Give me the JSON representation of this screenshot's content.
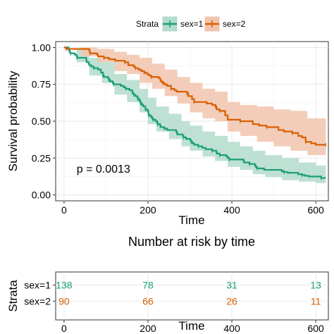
{
  "chart_data": [
    {
      "type": "line",
      "subtype": "kaplan-meier",
      "xlabel": "Time",
      "ylabel": "Survival probability",
      "xlim": [
        -20,
        630
      ],
      "ylim": [
        -0.04,
        1.04
      ],
      "xticks": [
        0,
        200,
        400,
        600
      ],
      "yticks": [
        0.0,
        0.25,
        0.5,
        0.75,
        1.0
      ],
      "xtick_labels": [
        "0",
        "200",
        "400",
        "600"
      ],
      "ytick_labels": [
        "0.00",
        "0.25",
        "0.50",
        "0.75",
        "1.00"
      ],
      "grid": true,
      "legend": {
        "title": "Strata",
        "placement": "top",
        "entries": [
          "sex=1",
          "sex=2"
        ]
      },
      "annotation": "p = 0.0013",
      "annotation_pos": {
        "x": 30,
        "y": 0.18
      },
      "series": [
        {
          "name": "sex=1",
          "color": "#1b9e77",
          "fill": "#b3dccb",
          "step": [
            [
              0,
              1.0
            ],
            [
              11,
              0.99
            ],
            [
              12,
              0.98
            ],
            [
              13,
              0.97
            ],
            [
              15,
              0.96
            ],
            [
              26,
              0.95
            ],
            [
              30,
              0.94
            ],
            [
              31,
              0.93
            ],
            [
              53,
              0.91
            ],
            [
              54,
              0.9
            ],
            [
              59,
              0.89
            ],
            [
              60,
              0.88
            ],
            [
              65,
              0.87
            ],
            [
              71,
              0.86
            ],
            [
              81,
              0.85
            ],
            [
              88,
              0.83
            ],
            [
              93,
              0.81
            ],
            [
              95,
              0.8
            ],
            [
              105,
              0.79
            ],
            [
              107,
              0.78
            ],
            [
              110,
              0.77
            ],
            [
              116,
              0.76
            ],
            [
              118,
              0.75
            ],
            [
              135,
              0.74
            ],
            [
              142,
              0.73
            ],
            [
              147,
              0.72
            ],
            [
              156,
              0.71
            ],
            [
              163,
              0.69
            ],
            [
              166,
              0.68
            ],
            [
              170,
              0.67
            ],
            [
              175,
              0.66
            ],
            [
              176,
              0.65
            ],
            [
              180,
              0.64
            ],
            [
              181,
              0.63
            ],
            [
              183,
              0.62
            ],
            [
              186,
              0.61
            ],
            [
              189,
              0.6
            ],
            [
              194,
              0.58
            ],
            [
              199,
              0.57
            ],
            [
              201,
              0.55
            ],
            [
              202,
              0.54
            ],
            [
              207,
              0.53
            ],
            [
              210,
              0.52
            ],
            [
              212,
              0.51
            ],
            [
              218,
              0.5
            ],
            [
              222,
              0.49
            ],
            [
              223,
              0.48
            ],
            [
              229,
              0.47
            ],
            [
              230,
              0.46
            ],
            [
              239,
              0.45
            ],
            [
              246,
              0.44
            ],
            [
              267,
              0.43
            ],
            [
              269,
              0.42
            ],
            [
              270,
              0.41
            ],
            [
              283,
              0.4
            ],
            [
              285,
              0.39
            ],
            [
              291,
              0.38
            ],
            [
              301,
              0.37
            ],
            [
              303,
              0.36
            ],
            [
              306,
              0.35
            ],
            [
              310,
              0.34
            ],
            [
              320,
              0.33
            ],
            [
              329,
              0.32
            ],
            [
              337,
              0.31
            ],
            [
              353,
              0.3
            ],
            [
              363,
              0.29
            ],
            [
              364,
              0.28
            ],
            [
              371,
              0.27
            ],
            [
              387,
              0.26
            ],
            [
              390,
              0.25
            ],
            [
              394,
              0.24
            ],
            [
              428,
              0.23
            ],
            [
              429,
              0.22
            ],
            [
              442,
              0.21
            ],
            [
              455,
              0.2
            ],
            [
              457,
              0.19
            ],
            [
              460,
              0.18
            ],
            [
              477,
              0.17
            ],
            [
              519,
              0.16
            ],
            [
              524,
              0.155
            ],
            [
              533,
              0.15
            ],
            [
              558,
              0.14
            ],
            [
              567,
              0.135
            ],
            [
              574,
              0.13
            ],
            [
              583,
              0.125
            ],
            [
              613,
              0.115
            ],
            [
              624,
              0.115
            ]
          ],
          "upper": [
            [
              0,
              1.0
            ],
            [
              30,
              0.99
            ],
            [
              60,
              0.93
            ],
            [
              90,
              0.9
            ],
            [
              120,
              0.82
            ],
            [
              150,
              0.78
            ],
            [
              180,
              0.72
            ],
            [
              200,
              0.66
            ],
            [
              220,
              0.6
            ],
            [
              250,
              0.55
            ],
            [
              280,
              0.5
            ],
            [
              300,
              0.47
            ],
            [
              330,
              0.43
            ],
            [
              360,
              0.4
            ],
            [
              390,
              0.36
            ],
            [
              420,
              0.33
            ],
            [
              450,
              0.3
            ],
            [
              480,
              0.27
            ],
            [
              520,
              0.25
            ],
            [
              560,
              0.22
            ],
            [
              600,
              0.2
            ],
            [
              624,
              0.19
            ]
          ],
          "lower": [
            [
              0,
              1.0
            ],
            [
              30,
              0.9
            ],
            [
              60,
              0.81
            ],
            [
              90,
              0.76
            ],
            [
              120,
              0.68
            ],
            [
              150,
              0.63
            ],
            [
              180,
              0.56
            ],
            [
              200,
              0.48
            ],
            [
              220,
              0.43
            ],
            [
              250,
              0.38
            ],
            [
              280,
              0.33
            ],
            [
              300,
              0.3
            ],
            [
              330,
              0.26
            ],
            [
              360,
              0.23
            ],
            [
              390,
              0.19
            ],
            [
              420,
              0.17
            ],
            [
              450,
              0.14
            ],
            [
              480,
              0.12
            ],
            [
              520,
              0.1
            ],
            [
              560,
              0.09
            ],
            [
              600,
              0.08
            ],
            [
              624,
              0.07
            ]
          ]
        },
        {
          "name": "sex=2",
          "color": "#d95f02",
          "fill": "#f1c4ad",
          "step": [
            [
              0,
              1.0
            ],
            [
              5,
              0.99
            ],
            [
              60,
              0.98
            ],
            [
              61,
              0.97
            ],
            [
              62,
              0.96
            ],
            [
              79,
              0.95
            ],
            [
              81,
              0.94
            ],
            [
              95,
              0.93
            ],
            [
              107,
              0.92
            ],
            [
              122,
              0.91
            ],
            [
              145,
              0.9
            ],
            [
              153,
              0.88
            ],
            [
              166,
              0.87
            ],
            [
              170,
              0.86
            ],
            [
              177,
              0.85
            ],
            [
              184,
              0.84
            ],
            [
              191,
              0.83
            ],
            [
              197,
              0.82
            ],
            [
              202,
              0.81
            ],
            [
              208,
              0.8
            ],
            [
              226,
              0.79
            ],
            [
              230,
              0.77
            ],
            [
              235,
              0.76
            ],
            [
              239,
              0.75
            ],
            [
              245,
              0.74
            ],
            [
              255,
              0.72
            ],
            [
              263,
              0.71
            ],
            [
              268,
              0.7
            ],
            [
              293,
              0.69
            ],
            [
              296,
              0.67
            ],
            [
              305,
              0.65
            ],
            [
              310,
              0.63
            ],
            [
              340,
              0.62
            ],
            [
              353,
              0.61
            ],
            [
              361,
              0.6
            ],
            [
              363,
              0.59
            ],
            [
              364,
              0.58
            ],
            [
              371,
              0.57
            ],
            [
              384,
              0.54
            ],
            [
              390,
              0.51
            ],
            [
              420,
              0.5
            ],
            [
              450,
              0.48
            ],
            [
              465,
              0.47
            ],
            [
              483,
              0.46
            ],
            [
              511,
              0.44
            ],
            [
              524,
              0.43
            ],
            [
              544,
              0.42
            ],
            [
              558,
              0.4
            ],
            [
              567,
              0.39
            ],
            [
              576,
              0.36
            ],
            [
              589,
              0.35
            ],
            [
              600,
              0.34
            ],
            [
              624,
              0.34
            ]
          ],
          "upper": [
            [
              0,
              1.0
            ],
            [
              40,
              1.0
            ],
            [
              80,
              0.99
            ],
            [
              120,
              0.97
            ],
            [
              150,
              0.95
            ],
            [
              180,
              0.93
            ],
            [
              210,
              0.89
            ],
            [
              240,
              0.85
            ],
            [
              270,
              0.8
            ],
            [
              300,
              0.76
            ],
            [
              330,
              0.72
            ],
            [
              360,
              0.7
            ],
            [
              390,
              0.63
            ],
            [
              420,
              0.61
            ],
            [
              460,
              0.6
            ],
            [
              500,
              0.58
            ],
            [
              540,
              0.57
            ],
            [
              580,
              0.52
            ],
            [
              624,
              0.5
            ]
          ],
          "lower": [
            [
              0,
              1.0
            ],
            [
              40,
              0.94
            ],
            [
              80,
              0.9
            ],
            [
              120,
              0.84
            ],
            [
              150,
              0.82
            ],
            [
              180,
              0.76
            ],
            [
              210,
              0.72
            ],
            [
              240,
              0.67
            ],
            [
              270,
              0.62
            ],
            [
              300,
              0.56
            ],
            [
              330,
              0.52
            ],
            [
              360,
              0.5
            ],
            [
              390,
              0.43
            ],
            [
              420,
              0.4
            ],
            [
              460,
              0.36
            ],
            [
              500,
              0.33
            ],
            [
              540,
              0.3
            ],
            [
              580,
              0.27
            ],
            [
              624,
              0.24
            ]
          ]
        }
      ]
    },
    {
      "type": "table",
      "title": "Number at risk by time",
      "xlabel": "Time",
      "ylabel": "Strata",
      "xticks": [
        0,
        200,
        400,
        600
      ],
      "xtick_labels": [
        "0",
        "200",
        "400",
        "600"
      ],
      "rows": [
        {
          "label": "sex=1",
          "color": "#1b9e77",
          "values": [
            138,
            78,
            31,
            13
          ]
        },
        {
          "label": "sex=2",
          "color": "#d95f02",
          "values": [
            90,
            66,
            26,
            11
          ]
        }
      ]
    }
  ]
}
